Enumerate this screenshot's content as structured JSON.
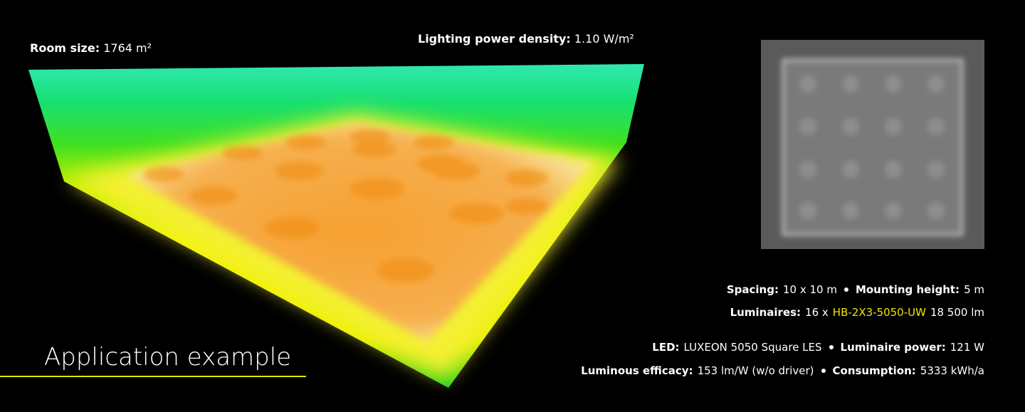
{
  "room_size": {
    "label": "Room size:",
    "value": "1764 m²"
  },
  "lighting_power_density": {
    "label": "Lighting power density:",
    "value": "1.10 W/m²"
  },
  "title": "Application example",
  "specs": {
    "spacing": {
      "label": "Spacing:",
      "value": "10 x 10 m"
    },
    "mounting_height": {
      "label": "Mounting height:",
      "value": "5 m"
    },
    "luminaires": {
      "label": "Luminaires:",
      "value": "16 x",
      "product": "HB-2X3-5050-UW",
      "flux": "18 500 lm"
    },
    "led": {
      "label": "LED:",
      "value": "LUXEON 5050 Square LES"
    },
    "luminaire_power": {
      "label": "Luminaire power:",
      "value": "121 W"
    },
    "luminous_efficacy": {
      "label": "Luminous efficacy:",
      "value": "153 lm/W (w/o driver)"
    },
    "consumption": {
      "label": "Consumption:",
      "value": "5333 kWh/a"
    }
  }
}
